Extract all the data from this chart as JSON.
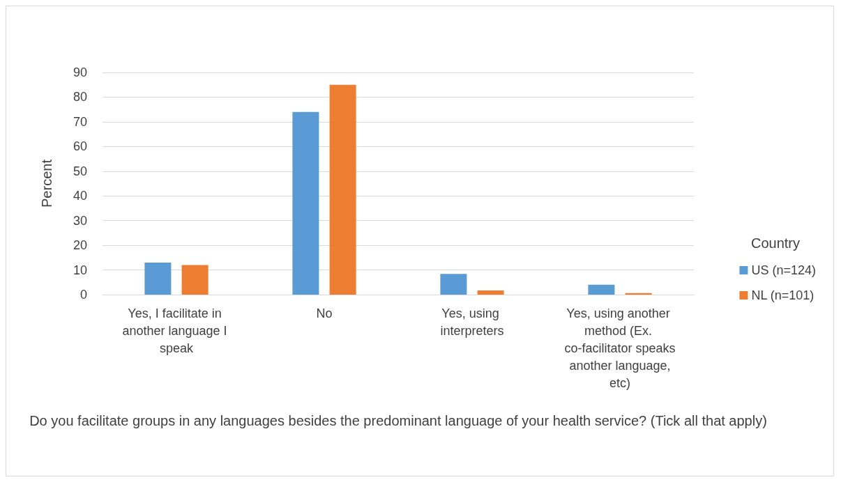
{
  "chart_data": {
    "type": "bar",
    "categories": [
      "Yes, I facilitate in another language I speak",
      "No",
      "Yes, using interpreters",
      "Yes, using another method (Ex. co-facilitator speaks another language, etc)"
    ],
    "series": [
      {
        "name": "US (n=124)",
        "color": "#5b9bd5",
        "values": [
          13,
          74,
          8.4,
          4
        ]
      },
      {
        "name": "NL (n=101)",
        "color": "#ed7d31",
        "values": [
          12,
          85,
          1.7,
          0.6
        ]
      }
    ],
    "xlabel": "Do you facilitate groups in any languages besides the predominant language of your health service? (Tick all that apply)",
    "ylabel": "Percent",
    "legend_title": "Country",
    "legend": "right",
    "ylim": [
      0,
      90
    ],
    "yticks": [
      0,
      10,
      20,
      30,
      40,
      50,
      60,
      70,
      80,
      90
    ],
    "grid": "y"
  }
}
